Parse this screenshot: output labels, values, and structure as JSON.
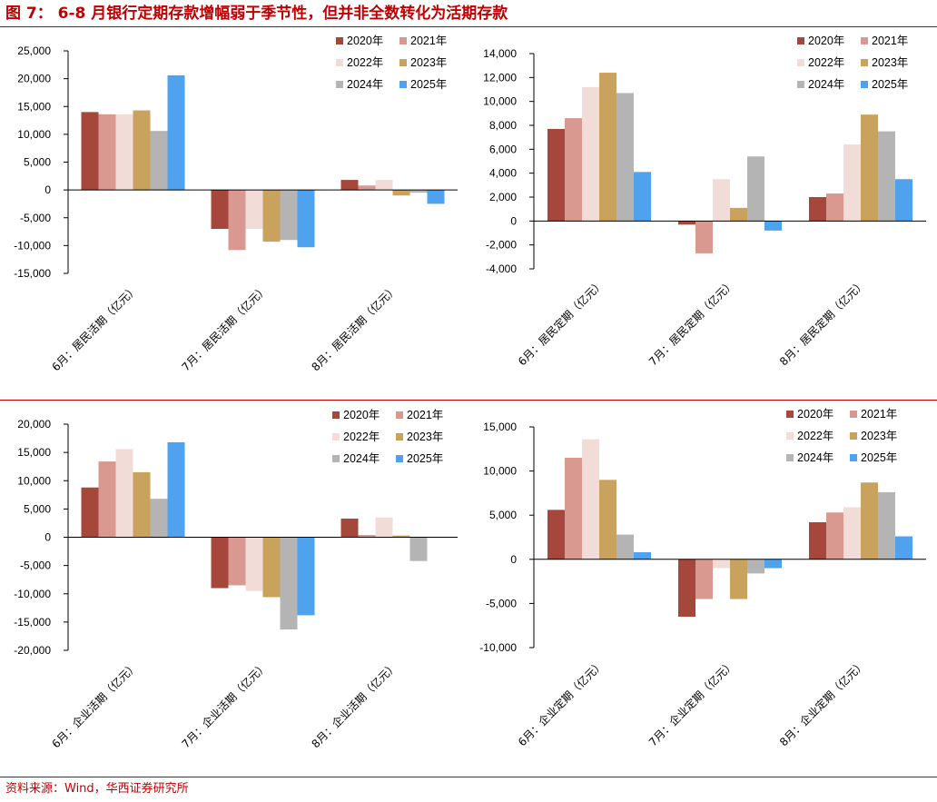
{
  "title": "图 7：  6-8 月银行定期存款增幅弱于季节性，但并非全数转化为活期存款",
  "source": "资料来源：Wind，华西证券研究所",
  "colors": {
    "title_red": "#c00000",
    "2020年": "#A5473A",
    "2021年": "#D99890",
    "2022年": "#F2DCD8",
    "2023年": "#C9A25E",
    "2024年": "#B4B4B4",
    "2025年": "#4FA2EE"
  },
  "chart_data": [
    {
      "type": "bar",
      "categories": [
        "6月：居民活期（亿元）",
        "7月：居民活期（亿元）",
        "8月：居民活期（亿元）"
      ],
      "series": [
        {
          "name": "2020年",
          "values": [
            14000,
            -7000,
            1800
          ]
        },
        {
          "name": "2021年",
          "values": [
            13600,
            -10800,
            800
          ]
        },
        {
          "name": "2022年",
          "values": [
            13600,
            -7000,
            1800
          ]
        },
        {
          "name": "2023年",
          "values": [
            14300,
            -9300,
            -1000
          ]
        },
        {
          "name": "2024年",
          "values": [
            10600,
            -9000,
            -500
          ]
        },
        {
          "name": "2025年",
          "values": [
            20600,
            -10300,
            -2500
          ]
        }
      ],
      "ylim": [
        -15000,
        25000
      ],
      "yticks": [
        -15000,
        -10000,
        -5000,
        0,
        5000,
        10000,
        15000,
        20000,
        25000
      ],
      "ytick_labels": [
        "-15,000",
        "-10,000",
        "-5,000",
        "0",
        "5,000",
        "10,000",
        "15,000",
        "20,000",
        "25,000"
      ],
      "legend": [
        "2020年",
        "2021年",
        "2022年",
        "2023年",
        "2024年",
        "2025年"
      ],
      "legend_position": "top-right"
    },
    {
      "type": "bar",
      "categories": [
        "6月：居民定期（亿元）",
        "7月：居民定期（亿元）",
        "8月：居民定期（亿元）"
      ],
      "series": [
        {
          "name": "2020年",
          "values": [
            7700,
            -300,
            2000
          ]
        },
        {
          "name": "2021年",
          "values": [
            8600,
            -2700,
            2300
          ]
        },
        {
          "name": "2022年",
          "values": [
            11200,
            3500,
            6400
          ]
        },
        {
          "name": "2023年",
          "values": [
            12400,
            1100,
            8900
          ]
        },
        {
          "name": "2024年",
          "values": [
            10700,
            5400,
            7500
          ]
        },
        {
          "name": "2025年",
          "values": [
            4100,
            -800,
            3500
          ]
        }
      ],
      "ylim": [
        -4000,
        14000
      ],
      "yticks": [
        -4000,
        -2000,
        0,
        2000,
        4000,
        6000,
        8000,
        10000,
        12000,
        14000
      ],
      "ytick_labels": [
        "-4,000",
        "-2,000",
        "0",
        "2,000",
        "4,000",
        "6,000",
        "8,000",
        "10,000",
        "12,000",
        "14,000"
      ],
      "legend": [
        "2020年",
        "2021年",
        "2022年",
        "2023年",
        "2024年",
        "2025年"
      ],
      "legend_position": "top-right"
    },
    {
      "type": "bar",
      "categories": [
        "6月：企业活期（亿元）",
        "7月：企业活期（亿元）",
        "8月：企业活期（亿元）"
      ],
      "series": [
        {
          "name": "2020年",
          "values": [
            8800,
            -9000,
            3300
          ]
        },
        {
          "name": "2021年",
          "values": [
            13400,
            -8500,
            400
          ]
        },
        {
          "name": "2022年",
          "values": [
            15600,
            -9500,
            3500
          ]
        },
        {
          "name": "2023年",
          "values": [
            11500,
            -10600,
            300
          ]
        },
        {
          "name": "2024年",
          "values": [
            6800,
            -16300,
            -4200
          ]
        },
        {
          "name": "2025年",
          "values": [
            16800,
            -13800,
            0
          ]
        }
      ],
      "ylim": [
        -20000,
        20000
      ],
      "yticks": [
        -20000,
        -15000,
        -10000,
        -5000,
        0,
        5000,
        10000,
        15000,
        20000
      ],
      "ytick_labels": [
        "-20,000",
        "-15,000",
        "-10,000",
        "-5,000",
        "0",
        "5,000",
        "10,000",
        "15,000",
        "20,000"
      ],
      "legend": [
        "2020年",
        "2021年",
        "2022年",
        "2023年",
        "2024年",
        "2025年"
      ],
      "legend_position": "top-right"
    },
    {
      "type": "bar",
      "categories": [
        "6月：企业定期（亿元）",
        "7月：企业定期（亿元）",
        "8月：企业定期（亿元）"
      ],
      "series": [
        {
          "name": "2020年",
          "values": [
            5600,
            -6500,
            4200
          ]
        },
        {
          "name": "2021年",
          "values": [
            11500,
            -4500,
            5300
          ]
        },
        {
          "name": "2022年",
          "values": [
            13600,
            -1000,
            5900
          ]
        },
        {
          "name": "2023年",
          "values": [
            9000,
            -4500,
            8700
          ]
        },
        {
          "name": "2024年",
          "values": [
            2800,
            -1600,
            7600
          ]
        },
        {
          "name": "2025年",
          "values": [
            800,
            -1000,
            2600
          ]
        }
      ],
      "ylim": [
        -10000,
        15000
      ],
      "yticks": [
        -10000,
        -5000,
        0,
        5000,
        10000,
        15000
      ],
      "ytick_labels": [
        "-10,000",
        "-5,000",
        "0",
        "5,000",
        "10,000",
        "15,000"
      ],
      "legend": [
        "2020年",
        "2021年",
        "2022年",
        "2023年",
        "2024年",
        "2025年"
      ],
      "legend_position": "top-right"
    }
  ]
}
